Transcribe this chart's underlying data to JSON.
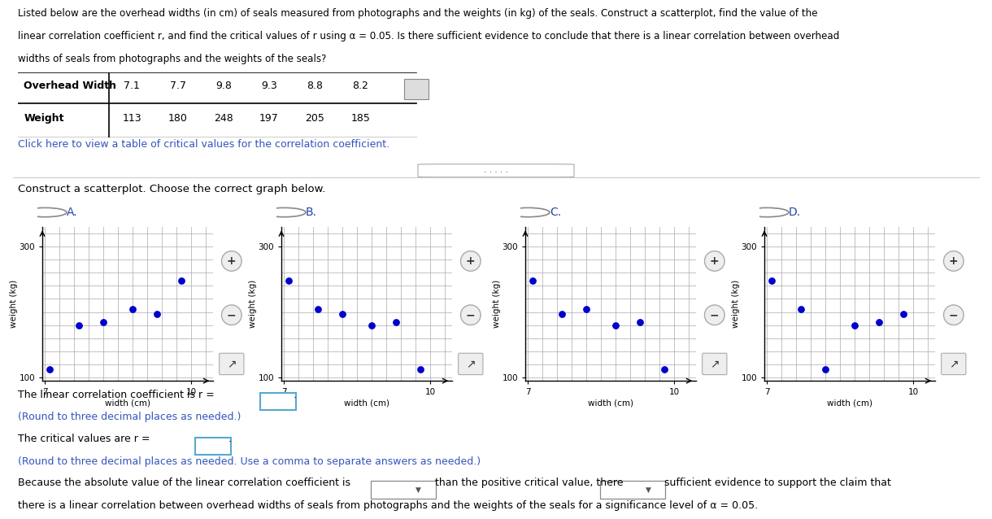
{
  "title_line1": "Listed below are the overhead widths (in cm) of seals measured from photographs and the weights (in kg) of the seals. Construct a scatterplot, find the value of the",
  "title_line2": "linear correlation coefficient r, and find the critical values of r using α = 0.05. Is there sufficient evidence to conclude that there is a linear correlation between overhead",
  "title_line3": "widths of seals from photographs and the weights of the seals?",
  "overhead_widths": [
    7.1,
    7.7,
    9.8,
    9.3,
    8.8,
    8.2
  ],
  "weights": [
    113,
    180,
    248,
    197,
    205,
    185
  ],
  "link_text": "Click here to view a table of critical values for the correlation coefficient.",
  "scatter_instruction": "Construct a scatterplot. Choose the correct graph below.",
  "ylabel": "weight (kg)",
  "xlabel": "width (cm)",
  "ylim": [
    100,
    300
  ],
  "xlim": [
    7,
    10
  ],
  "dot_color": "#0000CC",
  "grid_color": "#AAAAAA",
  "bg_color": "#FFFFFF",
  "text_color": "#000000",
  "blue_text_color": "#3355BB",
  "line1": "The linear correlation coefficient is r =",
  "line2": "(Round to three decimal places as needed.)",
  "line3": "The critical values are r =",
  "line4": "(Round to three decimal places as needed. Use a comma to separate answers as needed.)",
  "line5": "Because the absolute value of the linear correlation coefficient is",
  "line6": "than the positive critical value, there",
  "line7": "sufficient evidence to support the claim that",
  "line8": "there is a linear correlation between overhead widths of seals from photographs and the weights of the seals for a significance level of α = 0.05.",
  "plot_A": {
    "x": [
      7.1,
      7.7,
      9.8,
      9.3,
      8.8,
      8.2
    ],
    "y": [
      113,
      180,
      248,
      197,
      205,
      185
    ]
  },
  "plot_B": {
    "x": [
      7.1,
      7.7,
      9.8,
      9.3,
      8.8,
      8.2
    ],
    "y": [
      248,
      205,
      113,
      185,
      180,
      197
    ]
  },
  "plot_C": {
    "x": [
      7.1,
      7.7,
      9.8,
      9.3,
      8.8,
      8.2
    ],
    "y": [
      248,
      197,
      113,
      185,
      180,
      205
    ]
  },
  "plot_D": {
    "x": [
      7.1,
      7.7,
      9.8,
      9.3,
      8.8,
      8.2
    ],
    "y": [
      248,
      205,
      197,
      185,
      180,
      113
    ]
  }
}
